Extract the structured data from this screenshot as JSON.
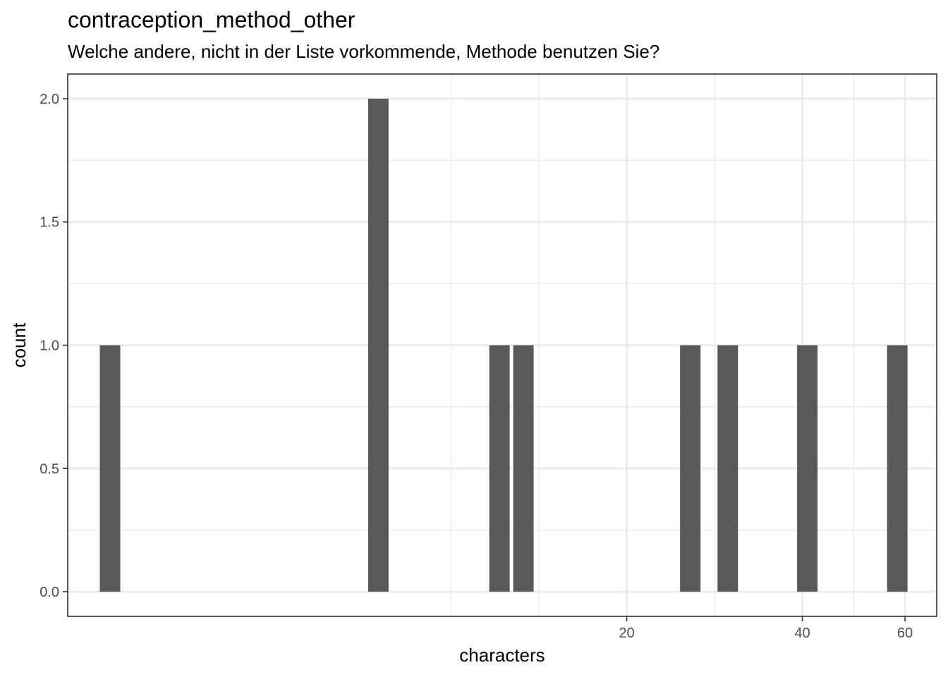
{
  "chart_data": {
    "type": "bar",
    "title": "contraception_method_other",
    "subtitle": "Welche andere, nicht in der Liste vorkommende, Methode benutzen Sie?",
    "xlabel": "characters",
    "ylabel": "count",
    "x_scale": "log10",
    "xlim": [
      2.2,
      68
    ],
    "ylim": [
      -0.1,
      2.1
    ],
    "x_ticks": [
      20,
      40,
      60
    ],
    "x_tick_labels": [
      "20",
      "40",
      "60"
    ],
    "y_ticks": [
      0.0,
      0.5,
      1.0,
      1.5,
      2.0
    ],
    "y_tick_labels": [
      "0.0",
      "0.5",
      "1.0",
      "1.5",
      "2.0"
    ],
    "grid": true,
    "bar_color": "#595959",
    "bars": [
      {
        "x": 2.6,
        "value": 1
      },
      {
        "x": 7.5,
        "value": 2
      },
      {
        "x": 12.1,
        "value": 1
      },
      {
        "x": 13.3,
        "value": 1
      },
      {
        "x": 25.7,
        "value": 1
      },
      {
        "x": 29.8,
        "value": 1
      },
      {
        "x": 40.8,
        "value": 1
      },
      {
        "x": 58.2,
        "value": 1
      }
    ]
  }
}
